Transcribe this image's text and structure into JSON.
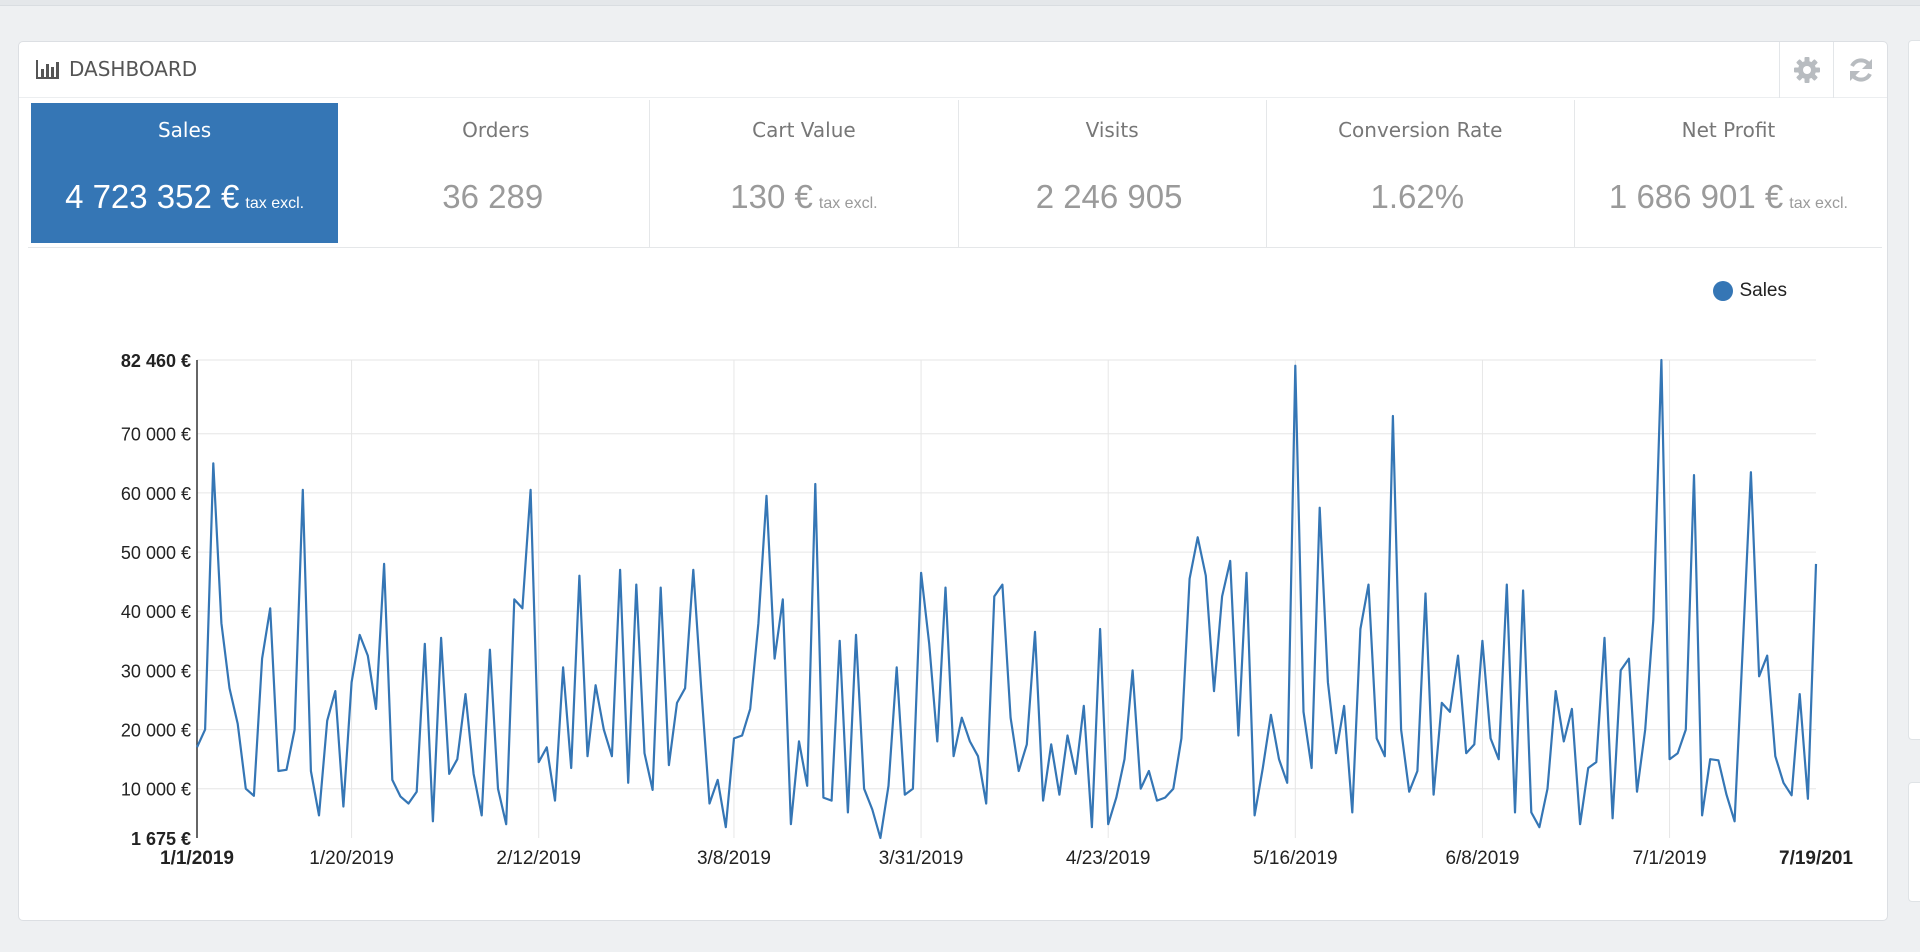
{
  "panel": {
    "title": "DASHBOARD",
    "title_icon": "bar-chart-icon",
    "actions": [
      {
        "name": "settings",
        "icon": "gear-icon"
      },
      {
        "name": "refresh",
        "icon": "refresh-icon"
      }
    ]
  },
  "kpis": [
    {
      "label": "Sales",
      "value": "4 723 352 €",
      "suffix": "tax excl.",
      "active": true
    },
    {
      "label": "Orders",
      "value": "36 289",
      "suffix": "",
      "active": false
    },
    {
      "label": "Cart Value",
      "value": "130 €",
      "suffix": "tax excl.",
      "active": false
    },
    {
      "label": "Visits",
      "value": "2 246 905",
      "suffix": "",
      "active": false
    },
    {
      "label": "Conversion Rate",
      "value": "1.62%",
      "suffix": "",
      "active": false
    },
    {
      "label": "Net Profit",
      "value": "1 686 901 €",
      "suffix": "tax excl.",
      "active": false
    }
  ],
  "colors": {
    "accent": "#3576b5"
  },
  "chart_data": {
    "type": "line",
    "legend": {
      "position": "top-right",
      "entries": [
        "Sales"
      ]
    },
    "grid": true,
    "ylim": [
      1675,
      82460
    ],
    "yticks": [
      {
        "value": 82460,
        "label": "82 460 €",
        "bold": true
      },
      {
        "value": 70000,
        "label": "70 000 €",
        "bold": false
      },
      {
        "value": 60000,
        "label": "60 000 €",
        "bold": false
      },
      {
        "value": 50000,
        "label": "50 000 €",
        "bold": false
      },
      {
        "value": 40000,
        "label": "40 000 €",
        "bold": false
      },
      {
        "value": 30000,
        "label": "30 000 €",
        "bold": false
      },
      {
        "value": 20000,
        "label": "20 000 €",
        "bold": false
      },
      {
        "value": 10000,
        "label": "10 000 €",
        "bold": false
      },
      {
        "value": 1675,
        "label": "1 675 €",
        "bold": true
      }
    ],
    "xlim": [
      "2019-01-01",
      "2019-07-19"
    ],
    "xticks": [
      {
        "date": "2019-01-01",
        "label": "1/1/2019",
        "bold": true
      },
      {
        "date": "2019-01-20",
        "label": "1/20/2019",
        "bold": false
      },
      {
        "date": "2019-02-12",
        "label": "2/12/2019",
        "bold": false
      },
      {
        "date": "2019-03-08",
        "label": "3/8/2019",
        "bold": false
      },
      {
        "date": "2019-03-31",
        "label": "3/31/2019",
        "bold": false
      },
      {
        "date": "2019-04-23",
        "label": "4/23/2019",
        "bold": false
      },
      {
        "date": "2019-05-16",
        "label": "5/16/2019",
        "bold": false
      },
      {
        "date": "2019-06-08",
        "label": "6/8/2019",
        "bold": false
      },
      {
        "date": "2019-07-01",
        "label": "7/1/2019",
        "bold": false
      },
      {
        "date": "2019-07-19",
        "label": "7/19/201",
        "bold": true
      }
    ],
    "series": [
      {
        "name": "Sales",
        "color": "#3576b5",
        "start_date": "2019-01-01",
        "values": [
          17000,
          20000,
          65000,
          38000,
          27000,
          21000,
          10000,
          8800,
          32000,
          40500,
          13000,
          13200,
          20000,
          60500,
          13000,
          5500,
          21500,
          26500,
          7000,
          28000,
          36000,
          32500,
          23500,
          48000,
          11500,
          8700,
          7500,
          9500,
          34500,
          4500,
          35500,
          12500,
          15000,
          26000,
          12500,
          5500,
          33500,
          10000,
          4000,
          42000,
          40500,
          60500,
          14500,
          17000,
          8000,
          30500,
          13500,
          46000,
          15500,
          27500,
          20000,
          15500,
          47000,
          11000,
          44500,
          16000,
          9800,
          44000,
          14000,
          24500,
          27000,
          47000,
          26500,
          7500,
          11500,
          3500,
          18500,
          19000,
          23500,
          38000,
          59500,
          32000,
          42000,
          4000,
          18000,
          10500,
          61500,
          8500,
          8000,
          35000,
          6000,
          36000,
          10000,
          6500,
          1675,
          10500,
          30500,
          9000,
          10000,
          46500,
          34500,
          18000,
          44000,
          15500,
          22000,
          18000,
          15500,
          7500,
          42500,
          44500,
          22000,
          13000,
          17500,
          36500,
          8000,
          17500,
          9000,
          19000,
          12500,
          24000,
          3500,
          37000,
          4000,
          8500,
          15000,
          30000,
          10000,
          13000,
          8000,
          8500,
          10000,
          18500,
          45500,
          52500,
          46000,
          26500,
          42500,
          48500,
          19000,
          46500,
          5500,
          13500,
          22500,
          15000,
          11000,
          81500,
          23000,
          13500,
          57500,
          28000,
          16000,
          24000,
          6000,
          37000,
          44500,
          18500,
          15500,
          73000,
          20000,
          9500,
          13000,
          43000,
          9000,
          24500,
          23000,
          32500,
          16000,
          17500,
          35000,
          18500,
          15000,
          44500,
          6000,
          43500,
          6000,
          3500,
          10000,
          26500,
          18000,
          23500,
          4000,
          13500,
          14500,
          35500,
          5000,
          30000,
          32000,
          9500,
          20000,
          38500,
          82460,
          15000,
          16000,
          20000,
          63000,
          5500,
          15000,
          14800,
          9000,
          4500,
          34000,
          63500,
          29000,
          32500,
          15500,
          11000,
          8900,
          26000,
          8300,
          48000
        ]
      }
    ]
  }
}
